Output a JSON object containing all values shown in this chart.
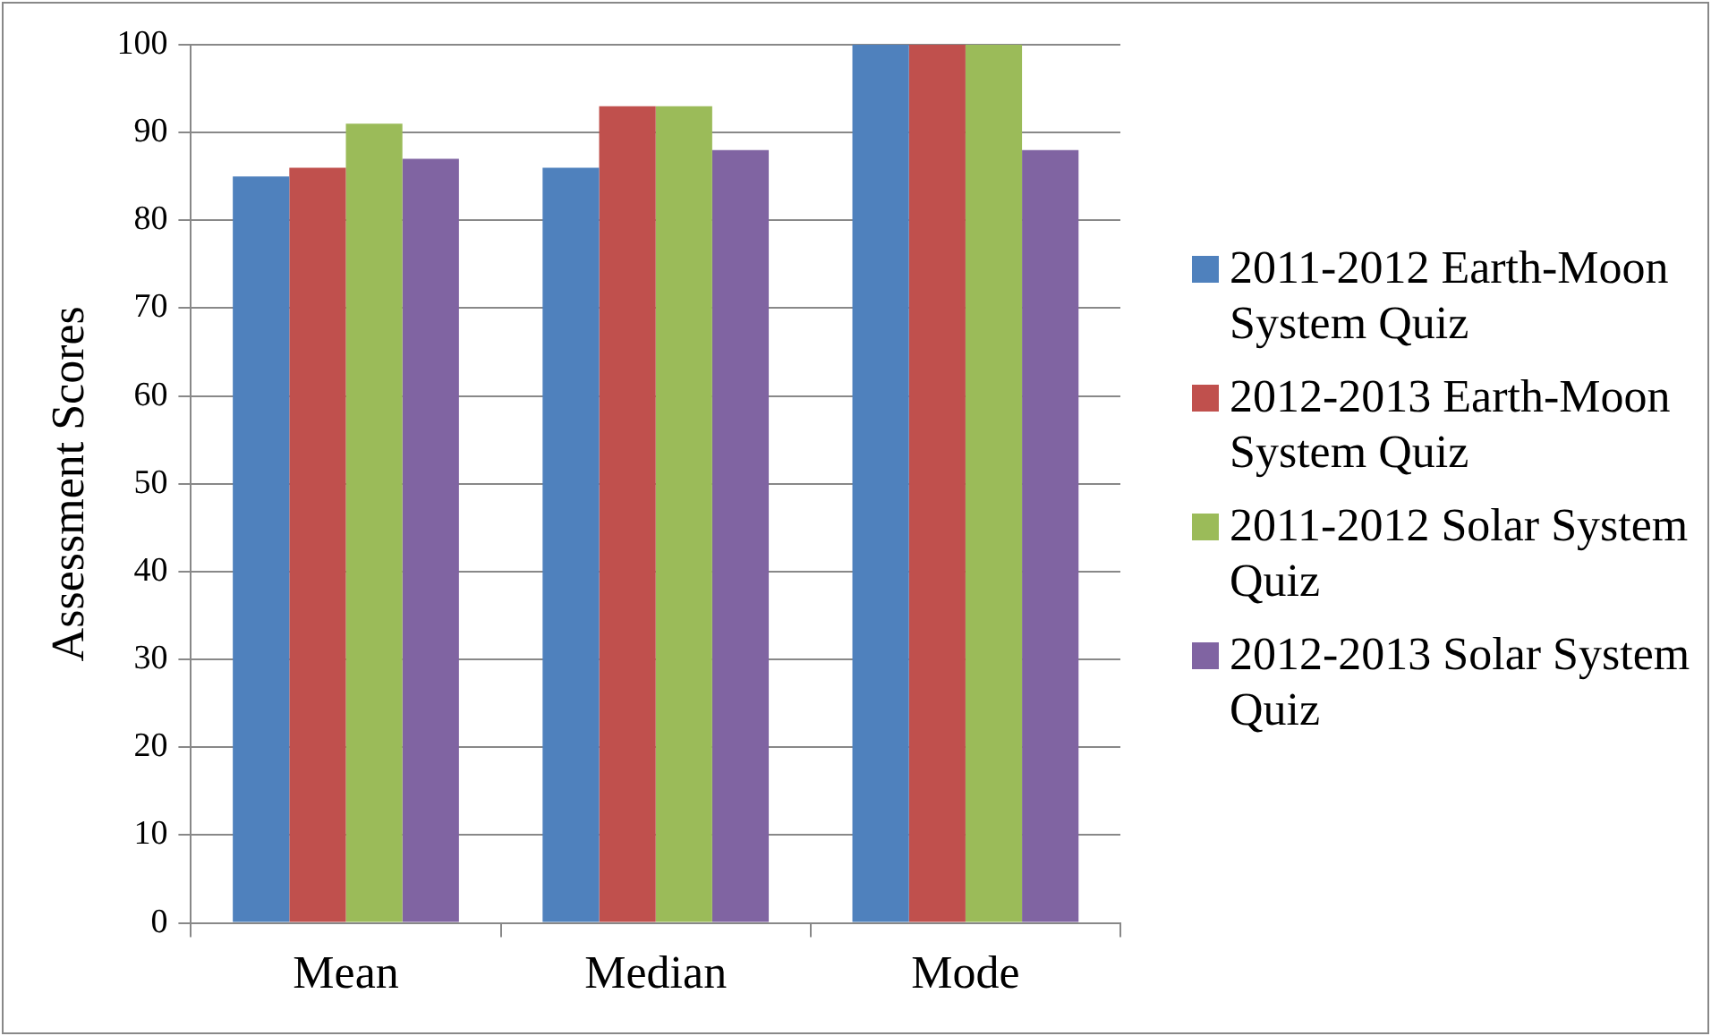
{
  "chart_data": {
    "type": "bar",
    "ylabel": "Assessment Scores",
    "categories": [
      "Mean",
      "Median",
      "Mode"
    ],
    "series": [
      {
        "name": "2011-2012 Earth-Moon System Quiz",
        "color": "#4f81bd",
        "values": [
          85,
          86,
          100
        ]
      },
      {
        "name": "2012-2013 Earth-Moon System Quiz",
        "color": "#c0504d",
        "values": [
          86,
          93,
          100
        ]
      },
      {
        "name": "2011-2012 Solar System Quiz",
        "color": "#9bbb59",
        "values": [
          91,
          93,
          100
        ]
      },
      {
        "name": "2012-2013 Solar System Quiz",
        "color": "#8064a2",
        "values": [
          87,
          88,
          88
        ]
      }
    ],
    "ylim": [
      0,
      100
    ],
    "yticks": [
      0,
      10,
      20,
      30,
      40,
      50,
      60,
      70,
      80,
      90,
      100
    ],
    "grid": "y",
    "legend": "right"
  }
}
